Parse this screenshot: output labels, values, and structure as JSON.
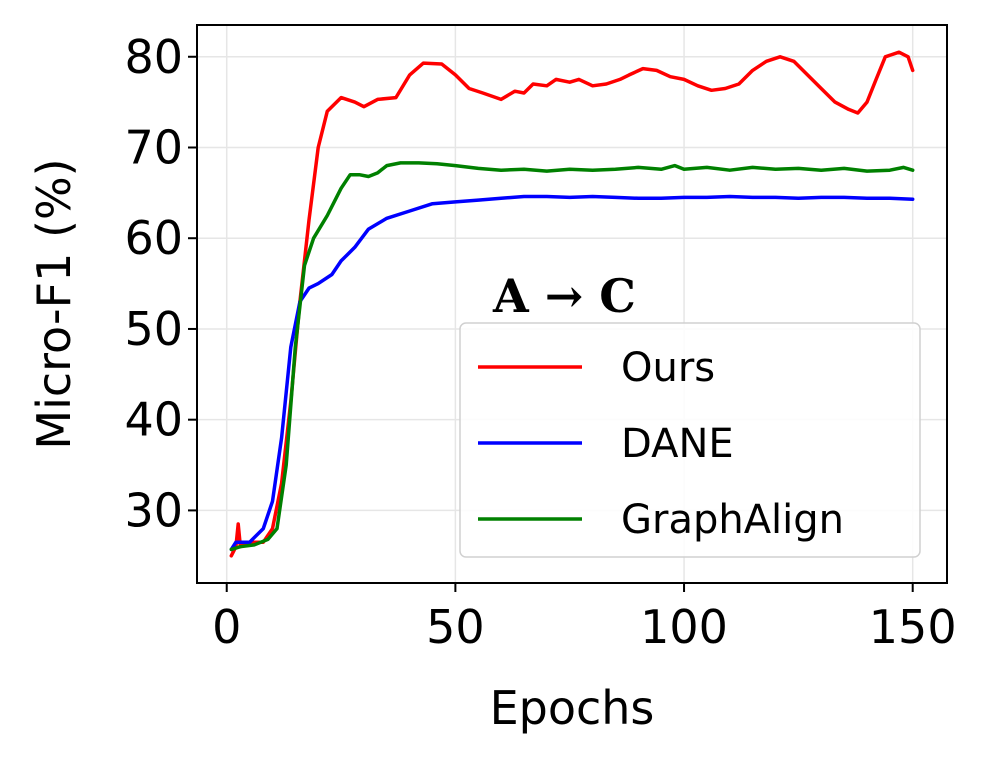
{
  "chart_data": {
    "type": "line",
    "title": "",
    "annotation": "A → C",
    "xlabel": "Epochs",
    "ylabel": "Micro-F1 (%)",
    "xlim": [
      -6.5,
      157.5
    ],
    "ylim": [
      22,
      83.5
    ],
    "xticks": [
      0,
      50,
      100,
      150
    ],
    "yticks": [
      30,
      40,
      50,
      60,
      70,
      80
    ],
    "grid": true,
    "legend_position": "lower-right",
    "series": [
      {
        "name": "Ours",
        "color": "#ff0000",
        "points": [
          [
            1,
            25
          ],
          [
            2,
            26
          ],
          [
            2.5,
            28.5
          ],
          [
            3,
            26
          ],
          [
            5,
            26.5
          ],
          [
            8,
            26.5
          ],
          [
            10,
            28
          ],
          [
            12,
            33
          ],
          [
            14,
            42
          ],
          [
            16,
            53
          ],
          [
            18,
            62
          ],
          [
            20,
            70
          ],
          [
            22,
            74
          ],
          [
            25,
            75.5
          ],
          [
            28,
            75
          ],
          [
            30,
            74.5
          ],
          [
            33,
            75.3
          ],
          [
            37,
            75.5
          ],
          [
            40,
            78
          ],
          [
            43,
            79.3
          ],
          [
            47,
            79.2
          ],
          [
            50,
            78
          ],
          [
            53,
            76.5
          ],
          [
            56,
            76
          ],
          [
            60,
            75.3
          ],
          [
            63,
            76.2
          ],
          [
            65,
            76
          ],
          [
            67,
            77
          ],
          [
            70,
            76.8
          ],
          [
            72,
            77.5
          ],
          [
            75,
            77.2
          ],
          [
            77,
            77.5
          ],
          [
            80,
            76.8
          ],
          [
            83,
            77
          ],
          [
            86,
            77.5
          ],
          [
            88,
            78
          ],
          [
            91,
            78.7
          ],
          [
            94,
            78.5
          ],
          [
            97,
            77.8
          ],
          [
            100,
            77.5
          ],
          [
            103,
            76.8
          ],
          [
            106,
            76.3
          ],
          [
            109,
            76.5
          ],
          [
            112,
            77
          ],
          [
            115,
            78.5
          ],
          [
            118,
            79.5
          ],
          [
            121,
            80
          ],
          [
            124,
            79.5
          ],
          [
            127,
            78
          ],
          [
            130,
            76.5
          ],
          [
            133,
            75
          ],
          [
            136,
            74.2
          ],
          [
            138,
            73.8
          ],
          [
            140,
            75
          ],
          [
            142,
            77.5
          ],
          [
            144,
            80
          ],
          [
            147,
            80.5
          ],
          [
            149,
            80
          ],
          [
            150,
            78.5
          ]
        ]
      },
      {
        "name": "DANE",
        "color": "#0000ff",
        "points": [
          [
            1,
            25.7
          ],
          [
            2,
            26.5
          ],
          [
            5,
            26.5
          ],
          [
            8,
            28
          ],
          [
            10,
            31
          ],
          [
            12,
            38
          ],
          [
            14,
            48
          ],
          [
            16,
            53
          ],
          [
            18,
            54.5
          ],
          [
            20,
            55
          ],
          [
            23,
            56
          ],
          [
            25,
            57.5
          ],
          [
            28,
            59
          ],
          [
            31,
            61
          ],
          [
            35,
            62.2
          ],
          [
            40,
            63
          ],
          [
            45,
            63.8
          ],
          [
            50,
            64
          ],
          [
            55,
            64.2
          ],
          [
            60,
            64.4
          ],
          [
            65,
            64.6
          ],
          [
            70,
            64.6
          ],
          [
            75,
            64.5
          ],
          [
            80,
            64.6
          ],
          [
            85,
            64.5
          ],
          [
            90,
            64.4
          ],
          [
            95,
            64.4
          ],
          [
            100,
            64.5
          ],
          [
            105,
            64.5
          ],
          [
            110,
            64.6
          ],
          [
            115,
            64.5
          ],
          [
            120,
            64.5
          ],
          [
            125,
            64.4
          ],
          [
            130,
            64.5
          ],
          [
            135,
            64.5
          ],
          [
            140,
            64.4
          ],
          [
            145,
            64.4
          ],
          [
            150,
            64.3
          ]
        ]
      },
      {
        "name": "GraphAlign",
        "color": "#008000",
        "points": [
          [
            1,
            25.7
          ],
          [
            3,
            26
          ],
          [
            6,
            26.2
          ],
          [
            9,
            26.8
          ],
          [
            11,
            28
          ],
          [
            13,
            35
          ],
          [
            15,
            48
          ],
          [
            17,
            57
          ],
          [
            19,
            60
          ],
          [
            22,
            62.5
          ],
          [
            25,
            65.5
          ],
          [
            27,
            67
          ],
          [
            29,
            67
          ],
          [
            31,
            66.8
          ],
          [
            33,
            67.2
          ],
          [
            35,
            68
          ],
          [
            38,
            68.3
          ],
          [
            42,
            68.3
          ],
          [
            46,
            68.2
          ],
          [
            50,
            68
          ],
          [
            55,
            67.7
          ],
          [
            60,
            67.5
          ],
          [
            65,
            67.6
          ],
          [
            70,
            67.4
          ],
          [
            75,
            67.6
          ],
          [
            80,
            67.5
          ],
          [
            85,
            67.6
          ],
          [
            90,
            67.8
          ],
          [
            95,
            67.6
          ],
          [
            98,
            68
          ],
          [
            100,
            67.6
          ],
          [
            105,
            67.8
          ],
          [
            110,
            67.5
          ],
          [
            115,
            67.8
          ],
          [
            120,
            67.6
          ],
          [
            125,
            67.7
          ],
          [
            130,
            67.5
          ],
          [
            135,
            67.7
          ],
          [
            140,
            67.4
          ],
          [
            145,
            67.5
          ],
          [
            148,
            67.8
          ],
          [
            150,
            67.5
          ]
        ]
      }
    ]
  }
}
